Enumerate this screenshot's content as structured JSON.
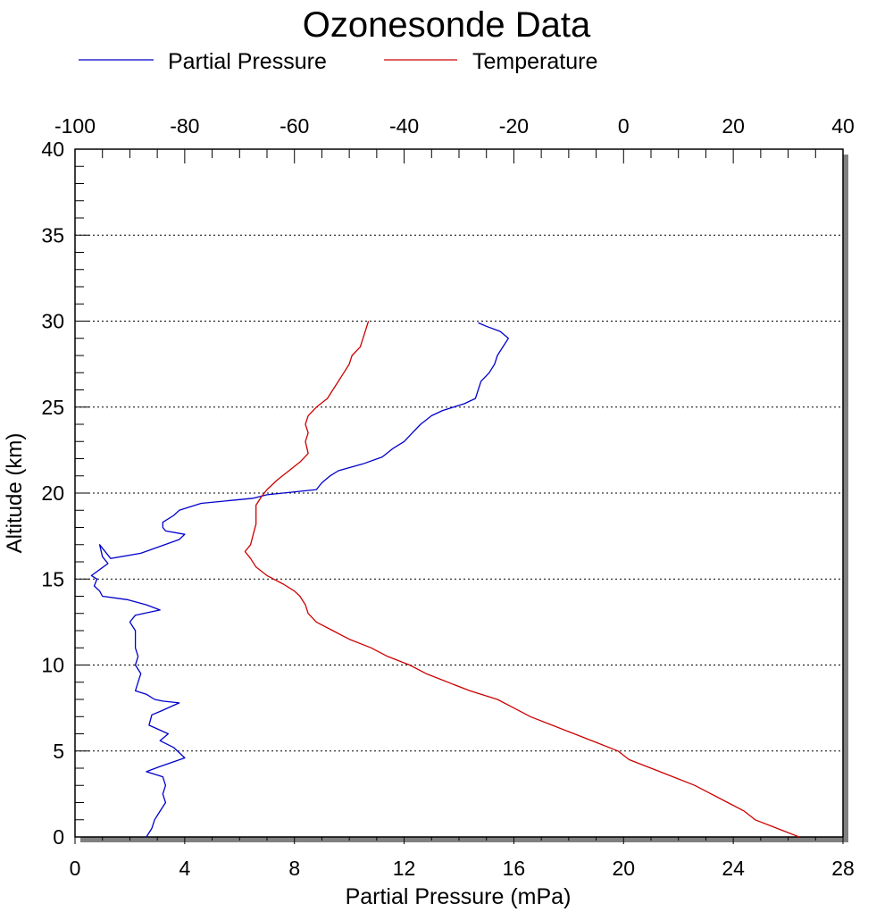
{
  "chart_data": {
    "type": "line",
    "title": "Ozonesonde Data",
    "ylabel": "Altitude (km)",
    "xlabel_bottom": "Partial Pressure (mPa)",
    "xlabel_top": "",
    "xlim_bottom": [
      0,
      28
    ],
    "xlim_top": [
      -100,
      40
    ],
    "ylim": [
      0,
      40
    ],
    "xticks_bottom": [
      "0",
      "4",
      "8",
      "12",
      "16",
      "20",
      "24",
      "28"
    ],
    "xticks_top": [
      "-100",
      "-80",
      "-60",
      "-40",
      "-20",
      "0",
      "20",
      "40"
    ],
    "yticks": [
      "0",
      "5",
      "10",
      "15",
      "20",
      "25",
      "30",
      "35",
      "40"
    ],
    "grid": "horizontal dotted at major y ticks",
    "legend_position": "top-left",
    "series": [
      {
        "name": "Partial Pressure",
        "color": "#0000cc",
        "axis": "bottom",
        "points": [
          [
            2.6,
            0.0
          ],
          [
            2.8,
            0.5
          ],
          [
            2.9,
            1.0
          ],
          [
            3.1,
            1.5
          ],
          [
            3.3,
            2.0
          ],
          [
            3.2,
            2.5
          ],
          [
            3.3,
            3.0
          ],
          [
            3.2,
            3.5
          ],
          [
            2.6,
            3.8
          ],
          [
            3.1,
            4.1
          ],
          [
            4.0,
            4.6
          ],
          [
            3.6,
            5.2
          ],
          [
            3.1,
            5.6
          ],
          [
            3.4,
            6.0
          ],
          [
            2.7,
            6.5
          ],
          [
            2.8,
            7.1
          ],
          [
            3.1,
            7.3
          ],
          [
            3.8,
            7.8
          ],
          [
            3.2,
            7.9
          ],
          [
            2.9,
            8.0
          ],
          [
            2.6,
            8.3
          ],
          [
            2.2,
            8.5
          ],
          [
            2.3,
            9.0
          ],
          [
            2.4,
            9.5
          ],
          [
            2.2,
            10.0
          ],
          [
            2.3,
            10.5
          ],
          [
            2.2,
            11.0
          ],
          [
            2.2,
            11.5
          ],
          [
            2.2,
            12.0
          ],
          [
            2.0,
            12.5
          ],
          [
            2.2,
            12.9
          ],
          [
            3.1,
            13.2
          ],
          [
            2.6,
            13.5
          ],
          [
            1.9,
            13.8
          ],
          [
            1.0,
            14.0
          ],
          [
            0.9,
            14.3
          ],
          [
            0.7,
            14.6
          ],
          [
            0.8,
            15.0
          ],
          [
            0.6,
            15.2
          ],
          [
            1.2,
            15.9
          ],
          [
            1.0,
            16.3
          ],
          [
            0.9,
            17.0
          ],
          [
            1.3,
            16.2
          ],
          [
            2.4,
            16.5
          ],
          [
            3.8,
            17.3
          ],
          [
            4.0,
            17.6
          ],
          [
            3.3,
            17.8
          ],
          [
            3.2,
            18.0
          ],
          [
            3.2,
            18.3
          ],
          [
            3.6,
            18.7
          ],
          [
            3.8,
            19.0
          ],
          [
            4.6,
            19.4
          ],
          [
            6.5,
            19.7
          ],
          [
            7.0,
            19.9
          ],
          [
            8.8,
            20.2
          ],
          [
            9.0,
            20.6
          ],
          [
            9.3,
            21.0
          ],
          [
            9.6,
            21.3
          ],
          [
            10.5,
            21.7
          ],
          [
            11.2,
            22.1
          ],
          [
            11.6,
            22.6
          ],
          [
            12.0,
            23.0
          ],
          [
            12.3,
            23.5
          ],
          [
            12.6,
            24.0
          ],
          [
            13.0,
            24.5
          ],
          [
            13.4,
            24.8
          ],
          [
            14.2,
            25.2
          ],
          [
            14.6,
            25.5
          ],
          [
            14.7,
            26.0
          ],
          [
            14.8,
            26.5
          ],
          [
            15.1,
            27.0
          ],
          [
            15.3,
            27.5
          ],
          [
            15.4,
            28.0
          ],
          [
            15.6,
            28.5
          ],
          [
            15.8,
            29.0
          ],
          [
            15.5,
            29.4
          ],
          [
            15.0,
            29.7
          ],
          [
            14.7,
            29.9
          ]
        ]
      },
      {
        "name": "Temperature",
        "color": "#cc0000",
        "axis": "top",
        "points": [
          [
            32.0,
            0.0
          ],
          [
            28.0,
            0.5
          ],
          [
            24.0,
            1.0
          ],
          [
            22.0,
            1.5
          ],
          [
            19.0,
            2.0
          ],
          [
            16.0,
            2.5
          ],
          [
            13.0,
            3.0
          ],
          [
            9.0,
            3.5
          ],
          [
            5.0,
            4.0
          ],
          [
            1.0,
            4.5
          ],
          [
            -1.0,
            5.0
          ],
          [
            -5.0,
            5.5
          ],
          [
            -9.0,
            6.0
          ],
          [
            -13.0,
            6.5
          ],
          [
            -17.0,
            7.0
          ],
          [
            -20.0,
            7.5
          ],
          [
            -23.0,
            8.0
          ],
          [
            -28.0,
            8.5
          ],
          [
            -32.0,
            9.0
          ],
          [
            -36.0,
            9.5
          ],
          [
            -39.0,
            10.0
          ],
          [
            -43.0,
            10.5
          ],
          [
            -46.0,
            11.0
          ],
          [
            -50.0,
            11.5
          ],
          [
            -53.0,
            12.0
          ],
          [
            -56.0,
            12.5
          ],
          [
            -57.5,
            13.0
          ],
          [
            -58.0,
            13.5
          ],
          [
            -59.0,
            14.0
          ],
          [
            -60.0,
            14.3
          ],
          [
            -62.0,
            14.7
          ],
          [
            -65.0,
            15.2
          ],
          [
            -67.0,
            15.7
          ],
          [
            -68.0,
            16.2
          ],
          [
            -69.0,
            16.6
          ],
          [
            -68.0,
            17.0
          ],
          [
            -67.5,
            17.6
          ],
          [
            -67.0,
            18.2
          ],
          [
            -67.0,
            18.8
          ],
          [
            -67.0,
            19.3
          ],
          [
            -66.0,
            19.8
          ],
          [
            -65.0,
            20.2
          ],
          [
            -63.0,
            20.8
          ],
          [
            -61.0,
            21.3
          ],
          [
            -59.0,
            21.8
          ],
          [
            -57.5,
            22.3
          ],
          [
            -58.0,
            23.0
          ],
          [
            -57.5,
            23.5
          ],
          [
            -58.0,
            24.0
          ],
          [
            -57.5,
            24.5
          ],
          [
            -56.0,
            25.0
          ],
          [
            -54.0,
            25.5
          ],
          [
            -53.0,
            26.0
          ],
          [
            -52.0,
            26.5
          ],
          [
            -51.0,
            27.0
          ],
          [
            -50.0,
            27.5
          ],
          [
            -49.5,
            28.0
          ],
          [
            -48.0,
            28.5
          ],
          [
            -47.5,
            29.0
          ],
          [
            -47.0,
            29.5
          ],
          [
            -46.5,
            30.0
          ]
        ]
      }
    ]
  }
}
